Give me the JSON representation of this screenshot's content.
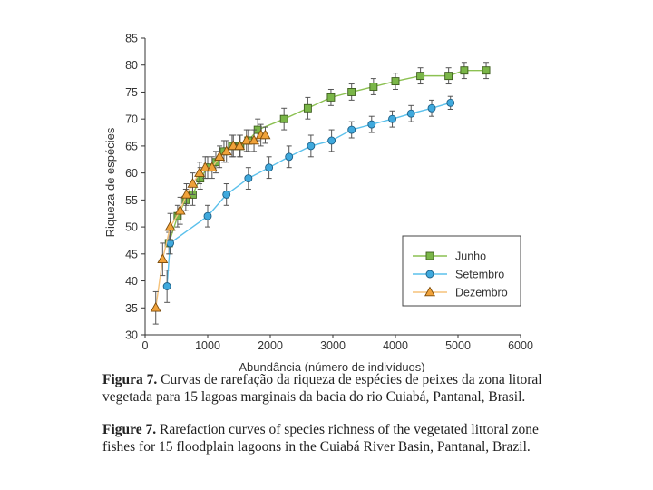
{
  "chart_data": {
    "type": "line",
    "xlabel": "Abundância (número de indivíduos)",
    "ylabel": "Riqueza de espécies",
    "xlim": [
      0,
      6000
    ],
    "ylim": [
      30,
      85
    ],
    "xticks": [
      0,
      1000,
      2000,
      3000,
      4000,
      5000,
      6000
    ],
    "yticks": [
      30,
      35,
      40,
      45,
      50,
      55,
      60,
      65,
      70,
      75,
      80,
      85
    ],
    "grid": false,
    "legend_position": "bottom-right",
    "series": [
      {
        "name": "Junho",
        "marker": "square",
        "color": "#7ab648",
        "line_color": "#8cc152",
        "x": [
          380,
          520,
          650,
          760,
          880,
          1000,
          1130,
          1260,
          1390,
          1520,
          1650,
          1800,
          2220,
          2600,
          2970,
          3300,
          3650,
          4000,
          4400,
          4850,
          5100,
          5450
        ],
        "y": [
          47,
          52,
          55,
          56,
          59,
          61,
          62,
          64,
          65,
          65,
          66,
          68,
          70,
          72,
          74,
          75,
          76,
          77,
          78,
          78,
          79,
          79
        ],
        "err": [
          2,
          2,
          2,
          2,
          2,
          2,
          2,
          2,
          2,
          2,
          2,
          2,
          2,
          2,
          1.5,
          1.5,
          1.5,
          1.5,
          1.5,
          1.5,
          1.5,
          1.5
        ]
      },
      {
        "name": "Setembro",
        "marker": "circle",
        "color": "#3fa9dd",
        "line_color": "#5bc0eb",
        "x": [
          350,
          400,
          1000,
          1300,
          1650,
          1980,
          2300,
          2650,
          2980,
          3300,
          3620,
          3950,
          4250,
          4580,
          4880
        ],
        "y": [
          39,
          47,
          52,
          56,
          59,
          61,
          63,
          65,
          66,
          68,
          69,
          70,
          71,
          72,
          73
        ],
        "err": [
          3,
          2,
          2,
          2,
          2,
          2,
          2,
          2,
          2,
          1.5,
          1.5,
          1.5,
          1.5,
          1.5,
          1.2
        ]
      },
      {
        "name": "Dezembro",
        "marker": "triangle",
        "color": "#f0a23a",
        "line_color": "#f5c27a",
        "x": [
          170,
          280,
          400,
          560,
          660,
          760,
          870,
          960,
          1070,
          1190,
          1300,
          1410,
          1510,
          1620,
          1740,
          1850,
          1920
        ],
        "y": [
          35,
          44,
          50,
          53,
          56,
          58,
          60,
          61,
          61,
          63,
          64,
          65,
          65,
          66,
          66,
          67,
          67
        ],
        "err": [
          3,
          3,
          2.5,
          2.5,
          2,
          2,
          2,
          2,
          2,
          2,
          2,
          2,
          2,
          2,
          2,
          2,
          1.5
        ]
      }
    ]
  },
  "captions": {
    "pt_label": "Figura 7.",
    "pt_text": " Curvas de rarefação da riqueza de espécies de peixes da zona litoral vegetada para 15 lagoas marginais da bacia do rio Cuiabá, Pantanal, Brasil.",
    "en_label": "Figure 7.",
    "en_text": " Rarefaction curves of species richness of the vegetated littoral zone fishes for 15 floodplain lagoons in the Cuiabá River Basin, Pantanal, Brazil."
  }
}
